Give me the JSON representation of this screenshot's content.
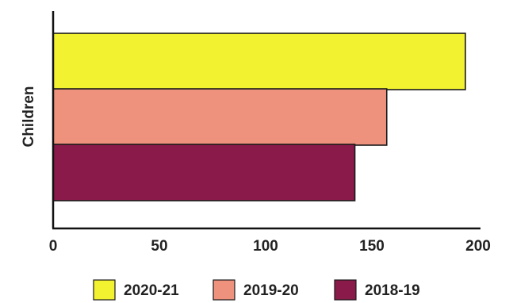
{
  "chart_data": {
    "type": "bar",
    "orientation": "horizontal",
    "categories": [
      "Children"
    ],
    "series": [
      {
        "name": "2020-21",
        "values": [
          194
        ],
        "color": "#f2f230"
      },
      {
        "name": "2019-20",
        "values": [
          157
        ],
        "color": "#ef927d"
      },
      {
        "name": "2018-19",
        "values": [
          142
        ],
        "color": "#8a1a4a"
      }
    ],
    "x_ticks": [
      "0",
      "50",
      "100",
      "150",
      "200"
    ],
    "xlim": [
      0,
      200
    ],
    "ylabel": "Children",
    "xlabel": "",
    "title": "",
    "grid": false,
    "legend_position": "bottom"
  }
}
